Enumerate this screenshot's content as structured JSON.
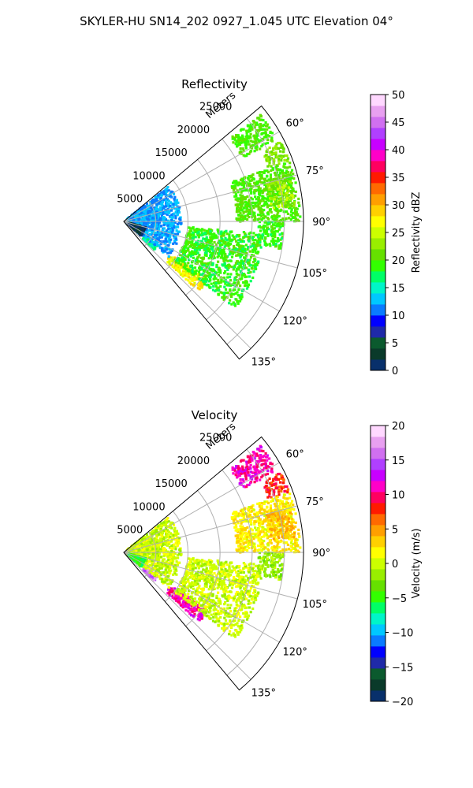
{
  "figure": {
    "title": "SKYLER-HU  SN14_202  0927_1.045 UTC Elevation 04°"
  },
  "chart_data": [
    {
      "type": "heatmap",
      "projection": "polar-sector",
      "title": "Reflectivity",
      "radial_label": "Meters",
      "radial_ticks": [
        5000,
        10000,
        15000,
        20000,
        25000
      ],
      "radial_tick_labels": [
        "5000",
        "10000",
        "15000",
        "20000",
        "25000"
      ],
      "rmax": 28000,
      "azimuth_range_deg": [
        50,
        140
      ],
      "angle_ticks": [
        60,
        75,
        90,
        105,
        120,
        135
      ],
      "angle_tick_labels": [
        "60°",
        "75°",
        "90°",
        "105°",
        "120°",
        "135°"
      ],
      "grid": true,
      "colorbar": {
        "label": "Reflectivity dBZ",
        "range": [
          0,
          50
        ],
        "ticks": [
          0,
          5,
          10,
          15,
          20,
          25,
          30,
          35,
          40,
          45,
          50
        ],
        "tick_labels": [
          "0",
          "5",
          "10",
          "15",
          "20",
          "25",
          "30",
          "35",
          "40",
          "45",
          "50"
        ]
      },
      "echoes": [
        {
          "az": [
            52,
            62
          ],
          "r": [
            21000,
            27000
          ],
          "value": 20
        },
        {
          "az": [
            63,
            70
          ],
          "r": [
            24000,
            27500
          ],
          "value": 22
        },
        {
          "az": [
            70,
            90
          ],
          "r": [
            17500,
            27500
          ],
          "value": 20
        },
        {
          "az": [
            90,
            100
          ],
          "r": [
            21000,
            25000
          ],
          "value": 19
        },
        {
          "az": [
            75,
            85
          ],
          "r": [
            23000,
            27000
          ],
          "value": 23
        },
        {
          "az": [
            125,
            133
          ],
          "r": [
            9000,
            16000
          ],
          "value": 27
        },
        {
          "az": [
            125,
            133
          ],
          "r": [
            4000,
            6500
          ],
          "value": 16
        },
        {
          "az": [
            95,
            128
          ],
          "r": [
            10000,
            22000
          ],
          "value": 19
        },
        {
          "az": [
            52,
            128
          ],
          "r": [
            500,
            9000
          ],
          "value": 12
        },
        {
          "az": [
            105,
            130
          ],
          "r": [
            800,
            3500
          ],
          "value": 2
        }
      ]
    },
    {
      "type": "heatmap",
      "projection": "polar-sector",
      "title": "Velocity",
      "radial_label": "Meters",
      "radial_ticks": [
        5000,
        10000,
        15000,
        20000,
        25000
      ],
      "radial_tick_labels": [
        "5000",
        "10000",
        "15000",
        "20000",
        "25000"
      ],
      "rmax": 28000,
      "azimuth_range_deg": [
        50,
        140
      ],
      "angle_ticks": [
        60,
        75,
        90,
        105,
        120,
        135
      ],
      "angle_tick_labels": [
        "60°",
        "75°",
        "90°",
        "105°",
        "120°",
        "135°"
      ],
      "grid": true,
      "colorbar": {
        "label": "Velocity (m/s)",
        "range": [
          -20,
          20
        ],
        "ticks": [
          -20,
          -15,
          -10,
          -5,
          0,
          5,
          10,
          15,
          20
        ],
        "tick_labels": [
          "−20",
          "−15",
          "−10",
          "−5",
          "0",
          "5",
          "10",
          "15",
          "20"
        ]
      },
      "echoes": [
        {
          "az": [
            52,
            62
          ],
          "r": [
            21000,
            27000
          ],
          "value": 11
        },
        {
          "az": [
            63,
            70
          ],
          "r": [
            24000,
            27500
          ],
          "value": 8
        },
        {
          "az": [
            70,
            90
          ],
          "r": [
            17500,
            27500
          ],
          "value": 2
        },
        {
          "az": [
            90,
            100
          ],
          "r": [
            21000,
            25000
          ],
          "value": -2
        },
        {
          "az": [
            75,
            85
          ],
          "r": [
            23000,
            27000
          ],
          "value": 4
        },
        {
          "az": [
            125,
            133
          ],
          "r": [
            9000,
            16000
          ],
          "value": 11
        },
        {
          "az": [
            125,
            133
          ],
          "r": [
            4000,
            6500
          ],
          "value": 16
        },
        {
          "az": [
            95,
            128
          ],
          "r": [
            10000,
            22000
          ],
          "value": 0
        },
        {
          "az": [
            52,
            128
          ],
          "r": [
            500,
            9000
          ],
          "value": 0
        },
        {
          "az": [
            105,
            130
          ],
          "r": [
            800,
            3500
          ],
          "value": -5
        }
      ]
    }
  ],
  "colormap": [
    "#08306b",
    "#0a3a2a",
    "#0b5a2e",
    "#1f2aa8",
    "#0000ff",
    "#0a7bff",
    "#00c8ff",
    "#00f5c8",
    "#00ff66",
    "#33ff00",
    "#66e000",
    "#99ee00",
    "#ccff00",
    "#ffff00",
    "#ffd000",
    "#ff9f00",
    "#ff6a00",
    "#ff1a00",
    "#ff0060",
    "#ff00c8",
    "#c800ff",
    "#b040ff",
    "#d070f0",
    "#e8a0f0",
    "#ffd8ff"
  ]
}
